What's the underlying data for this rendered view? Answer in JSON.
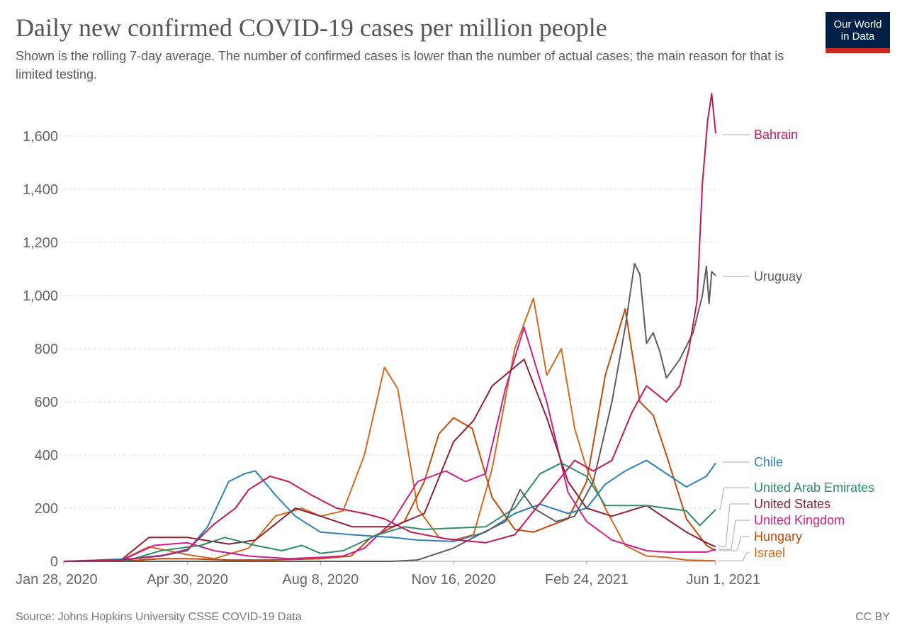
{
  "header": {
    "title": "Daily new confirmed COVID-19 cases per million people",
    "subtitle": "Shown is the rolling 7-day average. The number of confirmed cases is lower than the number of actual cases; the main reason for that is limited testing.",
    "logo_line1": "Our World",
    "logo_line2": "in Data"
  },
  "footer": {
    "source": "Source: Johns Hopkins University CSSE COVID-19 Data",
    "license": "CC BY"
  },
  "chart_data": {
    "type": "line",
    "title": "Daily new confirmed COVID-19 cases per million people",
    "ylim": [
      0,
      1750
    ],
    "yticks": [
      0,
      200,
      400,
      600,
      800,
      1000,
      1200,
      1400,
      1600
    ],
    "ytick_labels": [
      "0",
      "200",
      "400",
      "600",
      "800",
      "1,000",
      "1,200",
      "1,400",
      "1,600"
    ],
    "xlim": [
      "2020-01-28",
      "2021-06-01"
    ],
    "xticks": [
      "2020-01-28",
      "2020-04-30",
      "2020-08-08",
      "2020-11-16",
      "2021-02-24",
      "2021-06-01"
    ],
    "xtick_labels": [
      "Jan 28, 2020",
      "Apr 30, 2020",
      "Aug 8, 2020",
      "Nov 16, 2020",
      "Feb 24, 2021",
      "Jun 1, 2021"
    ],
    "grid": "horizontal dashed",
    "legend": "right, labels at line ends",
    "series": [
      {
        "name": "Bahrain",
        "color": "#c2185b",
        "points": [
          [
            "2020-01-28",
            0
          ],
          [
            "2020-03-10",
            5
          ],
          [
            "2020-04-10",
            20
          ],
          [
            "2020-04-30",
            45
          ],
          [
            "2020-05-20",
            140
          ],
          [
            "2020-06-05",
            200
          ],
          [
            "2020-06-15",
            270
          ],
          [
            "2020-07-01",
            320
          ],
          [
            "2020-07-15",
            300
          ],
          [
            "2020-08-01",
            250
          ],
          [
            "2020-08-20",
            200
          ],
          [
            "2020-09-10",
            180
          ],
          [
            "2020-09-25",
            160
          ],
          [
            "2020-10-15",
            110
          ],
          [
            "2020-11-10",
            85
          ],
          [
            "2020-12-10",
            70
          ],
          [
            "2021-01-01",
            100
          ],
          [
            "2021-01-25",
            250
          ],
          [
            "2021-02-15",
            380
          ],
          [
            "2021-03-01",
            340
          ],
          [
            "2021-03-15",
            380
          ],
          [
            "2021-03-30",
            560
          ],
          [
            "2021-04-10",
            660
          ],
          [
            "2021-04-25",
            600
          ],
          [
            "2021-05-05",
            660
          ],
          [
            "2021-05-12",
            800
          ],
          [
            "2021-05-18",
            980
          ],
          [
            "2021-05-22",
            1420
          ],
          [
            "2021-05-26",
            1660
          ],
          [
            "2021-05-29",
            1760
          ],
          [
            "2021-06-01",
            1610
          ]
        ]
      },
      {
        "name": "Uruguay",
        "color": "#5d5d5d",
        "points": [
          [
            "2020-01-28",
            0
          ],
          [
            "2020-03-15",
            0
          ],
          [
            "2020-10-01",
            0
          ],
          [
            "2020-10-20",
            5
          ],
          [
            "2020-11-16",
            50
          ],
          [
            "2020-12-05",
            100
          ],
          [
            "2020-12-25",
            150
          ],
          [
            "2021-01-05",
            270
          ],
          [
            "2021-01-15",
            200
          ],
          [
            "2021-02-01",
            150
          ],
          [
            "2021-02-15",
            170
          ],
          [
            "2021-03-01",
            300
          ],
          [
            "2021-03-15",
            600
          ],
          [
            "2021-03-25",
            880
          ],
          [
            "2021-04-01",
            1120
          ],
          [
            "2021-04-05",
            1080
          ],
          [
            "2021-04-10",
            820
          ],
          [
            "2021-04-15",
            860
          ],
          [
            "2021-04-20",
            790
          ],
          [
            "2021-04-25",
            690
          ],
          [
            "2021-05-05",
            760
          ],
          [
            "2021-05-15",
            860
          ],
          [
            "2021-05-22",
            1000
          ],
          [
            "2021-05-25",
            1110
          ],
          [
            "2021-05-27",
            970
          ],
          [
            "2021-05-29",
            1090
          ],
          [
            "2021-06-01",
            1075
          ]
        ]
      },
      {
        "name": "Chile",
        "color": "#2c7fb8",
        "points": [
          [
            "2020-01-28",
            0
          ],
          [
            "2020-03-20",
            10
          ],
          [
            "2020-04-15",
            25
          ],
          [
            "2020-04-30",
            40
          ],
          [
            "2020-05-15",
            130
          ],
          [
            "2020-05-31",
            300
          ],
          [
            "2020-06-12",
            330
          ],
          [
            "2020-06-20",
            340
          ],
          [
            "2020-07-05",
            250
          ],
          [
            "2020-07-20",
            170
          ],
          [
            "2020-08-08",
            110
          ],
          [
            "2020-09-01",
            100
          ],
          [
            "2020-10-01",
            90
          ],
          [
            "2020-10-20",
            80
          ],
          [
            "2020-11-16",
            75
          ],
          [
            "2020-12-10",
            110
          ],
          [
            "2021-01-01",
            180
          ],
          [
            "2021-01-20",
            215
          ],
          [
            "2021-02-10",
            180
          ],
          [
            "2021-02-24",
            200
          ],
          [
            "2021-03-10",
            290
          ],
          [
            "2021-03-25",
            340
          ],
          [
            "2021-04-10",
            380
          ],
          [
            "2021-04-25",
            330
          ],
          [
            "2021-05-10",
            280
          ],
          [
            "2021-05-25",
            320
          ],
          [
            "2021-06-01",
            370
          ]
        ]
      },
      {
        "name": "United Arab Emirates",
        "color": "#2e8b6e",
        "points": [
          [
            "2020-01-28",
            0
          ],
          [
            "2020-03-15",
            2
          ],
          [
            "2020-04-10",
            40
          ],
          [
            "2020-05-10",
            60
          ],
          [
            "2020-05-28",
            90
          ],
          [
            "2020-06-20",
            60
          ],
          [
            "2020-07-10",
            40
          ],
          [
            "2020-07-25",
            60
          ],
          [
            "2020-08-08",
            30
          ],
          [
            "2020-08-25",
            40
          ],
          [
            "2020-09-20",
            100
          ],
          [
            "2020-10-10",
            130
          ],
          [
            "2020-10-25",
            120
          ],
          [
            "2020-11-16",
            125
          ],
          [
            "2020-12-10",
            130
          ],
          [
            "2021-01-01",
            200
          ],
          [
            "2021-01-20",
            330
          ],
          [
            "2021-02-05",
            370
          ],
          [
            "2021-02-24",
            320
          ],
          [
            "2021-03-10",
            210
          ],
          [
            "2021-03-25",
            210
          ],
          [
            "2021-04-10",
            210
          ],
          [
            "2021-04-25",
            200
          ],
          [
            "2021-05-10",
            190
          ],
          [
            "2021-05-20",
            135
          ],
          [
            "2021-06-01",
            195
          ]
        ]
      },
      {
        "name": "United States",
        "color": "#8b2332",
        "points": [
          [
            "2020-01-28",
            0
          ],
          [
            "2020-03-10",
            1
          ],
          [
            "2020-04-01",
            90
          ],
          [
            "2020-04-30",
            90
          ],
          [
            "2020-05-31",
            65
          ],
          [
            "2020-06-20",
            80
          ],
          [
            "2020-07-20",
            200
          ],
          [
            "2020-08-08",
            170
          ],
          [
            "2020-09-01",
            130
          ],
          [
            "2020-10-01",
            130
          ],
          [
            "2020-10-25",
            180
          ],
          [
            "2020-11-16",
            450
          ],
          [
            "2020-12-01",
            530
          ],
          [
            "2020-12-15",
            660
          ],
          [
            "2021-01-08",
            760
          ],
          [
            "2021-01-25",
            540
          ],
          [
            "2021-02-10",
            300
          ],
          [
            "2021-02-24",
            200
          ],
          [
            "2021-03-15",
            170
          ],
          [
            "2021-04-10",
            210
          ],
          [
            "2021-04-25",
            160
          ],
          [
            "2021-05-10",
            110
          ],
          [
            "2021-05-25",
            70
          ],
          [
            "2021-06-01",
            55
          ]
        ]
      },
      {
        "name": "United Kingdom",
        "color": "#d01c8b",
        "points": [
          [
            "2020-01-28",
            0
          ],
          [
            "2020-03-10",
            1
          ],
          [
            "2020-04-05",
            60
          ],
          [
            "2020-04-30",
            70
          ],
          [
            "2020-05-20",
            40
          ],
          [
            "2020-06-15",
            20
          ],
          [
            "2020-07-15",
            10
          ],
          [
            "2020-08-08",
            15
          ],
          [
            "2020-08-25",
            20
          ],
          [
            "2020-09-10",
            50
          ],
          [
            "2020-10-01",
            150
          ],
          [
            "2020-10-20",
            300
          ],
          [
            "2020-11-10",
            340
          ],
          [
            "2020-11-25",
            300
          ],
          [
            "2020-12-10",
            330
          ],
          [
            "2020-12-25",
            650
          ],
          [
            "2021-01-08",
            880
          ],
          [
            "2021-01-25",
            600
          ],
          [
            "2021-02-10",
            260
          ],
          [
            "2021-02-24",
            150
          ],
          [
            "2021-03-15",
            80
          ],
          [
            "2021-04-10",
            40
          ],
          [
            "2021-04-25",
            35
          ],
          [
            "2021-05-10",
            35
          ],
          [
            "2021-05-25",
            35
          ],
          [
            "2021-06-01",
            45
          ]
        ]
      },
      {
        "name": "Hungary",
        "color": "#c14b0b",
        "points": [
          [
            "2020-01-28",
            0
          ],
          [
            "2020-03-10",
            0
          ],
          [
            "2020-04-10",
            10
          ],
          [
            "2020-04-30",
            10
          ],
          [
            "2020-06-01",
            5
          ],
          [
            "2020-07-01",
            5
          ],
          [
            "2020-08-08",
            10
          ],
          [
            "2020-08-31",
            20
          ],
          [
            "2020-09-15",
            90
          ],
          [
            "2020-10-10",
            150
          ],
          [
            "2020-10-25",
            300
          ],
          [
            "2020-11-05",
            480
          ],
          [
            "2020-11-16",
            540
          ],
          [
            "2020-11-30",
            500
          ],
          [
            "2020-12-15",
            240
          ],
          [
            "2021-01-01",
            120
          ],
          [
            "2021-01-15",
            110
          ],
          [
            "2021-02-10",
            160
          ],
          [
            "2021-02-24",
            300
          ],
          [
            "2021-03-10",
            700
          ],
          [
            "2021-03-25",
            950
          ],
          [
            "2021-04-05",
            600
          ],
          [
            "2021-04-15",
            550
          ],
          [
            "2021-04-25",
            400
          ],
          [
            "2021-05-10",
            160
          ],
          [
            "2021-05-25",
            60
          ],
          [
            "2021-06-01",
            40
          ]
        ]
      },
      {
        "name": "Israel",
        "color": "#d2691e",
        "points": [
          [
            "2020-01-28",
            0
          ],
          [
            "2020-03-10",
            2
          ],
          [
            "2020-04-01",
            55
          ],
          [
            "2020-04-30",
            25
          ],
          [
            "2020-05-20",
            10
          ],
          [
            "2020-06-15",
            50
          ],
          [
            "2020-07-05",
            170
          ],
          [
            "2020-07-25",
            200
          ],
          [
            "2020-08-08",
            170
          ],
          [
            "2020-08-25",
            190
          ],
          [
            "2020-09-10",
            400
          ],
          [
            "2020-09-25",
            730
          ],
          [
            "2020-10-05",
            650
          ],
          [
            "2020-10-20",
            200
          ],
          [
            "2020-11-05",
            90
          ],
          [
            "2020-11-16",
            80
          ],
          [
            "2020-12-01",
            100
          ],
          [
            "2020-12-15",
            350
          ],
          [
            "2021-01-01",
            800
          ],
          [
            "2021-01-15",
            990
          ],
          [
            "2021-01-25",
            700
          ],
          [
            "2021-02-05",
            800
          ],
          [
            "2021-02-15",
            500
          ],
          [
            "2021-02-24",
            350
          ],
          [
            "2021-03-10",
            200
          ],
          [
            "2021-03-25",
            60
          ],
          [
            "2021-04-10",
            20
          ],
          [
            "2021-04-25",
            15
          ],
          [
            "2021-05-10",
            5
          ],
          [
            "2021-06-01",
            2
          ]
        ]
      }
    ]
  }
}
